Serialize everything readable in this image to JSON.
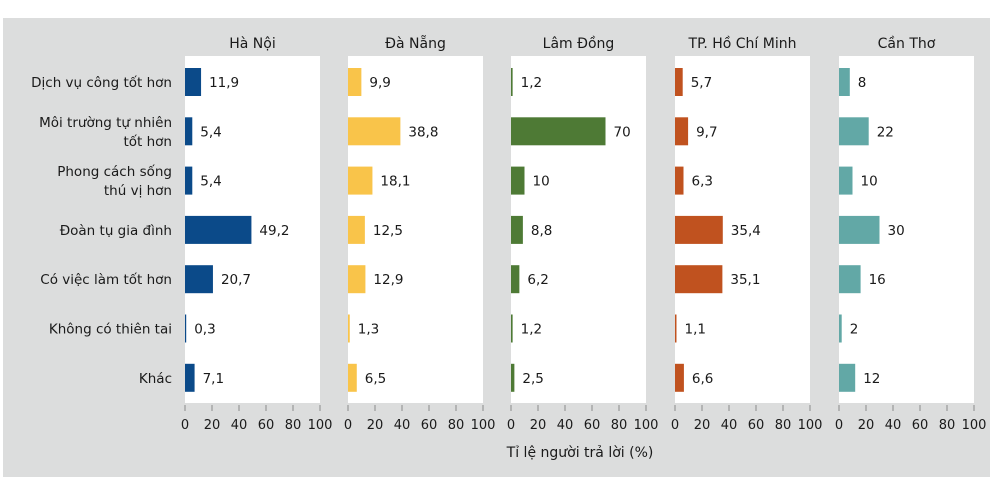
{
  "chart_data": {
    "type": "bar",
    "orientation": "horizontal",
    "title": "",
    "xlabel": "Tỉ lệ người trả lời (%)",
    "ylabel": "",
    "xlim": [
      0,
      100
    ],
    "xticks": [
      0,
      20,
      40,
      60,
      80,
      100
    ],
    "grid": false,
    "categories": [
      [
        "Dịch vụ công tốt hơn"
      ],
      [
        "Môi trường tự nhiên",
        "tốt hơn"
      ],
      [
        "Phong cách sống",
        "thú vị hơn"
      ],
      [
        "Đoàn tụ gia đình"
      ],
      [
        "Có việc làm tốt hơn"
      ],
      [
        "Không có thiên tai"
      ],
      [
        "Khác"
      ]
    ],
    "series": [
      {
        "name": "Hà Nội",
        "color": "#0b4a89",
        "values": [
          11.9,
          5.4,
          5.4,
          49.2,
          20.7,
          0.3,
          7.1
        ],
        "labels": [
          "11,9",
          "5,4",
          "5,4",
          "49,2",
          "20,7",
          "0,3",
          "7,1"
        ]
      },
      {
        "name": "Đà Nẵng",
        "color": "#f9c44a",
        "values": [
          9.9,
          38.8,
          18.1,
          12.5,
          12.9,
          1.3,
          6.5
        ],
        "labels": [
          "9,9",
          "38,8",
          "18,1",
          "12,5",
          "12,9",
          "1,3",
          "6,5"
        ]
      },
      {
        "name": "Lâm Đồng",
        "color": "#4e7a35",
        "values": [
          1.2,
          70,
          10,
          8.8,
          6.2,
          1.2,
          2.5
        ],
        "labels": [
          "1,2",
          "70",
          "10",
          "8,8",
          "6,2",
          "1,2",
          "2,5"
        ]
      },
      {
        "name": "TP. Hồ Chí Minh",
        "color": "#c0521f",
        "values": [
          5.7,
          9.7,
          6.3,
          35.4,
          35.1,
          1.1,
          6.6
        ],
        "labels": [
          "5,7",
          "9,7",
          "6,3",
          "35,4",
          "35,1",
          "1,1",
          "6,6"
        ]
      },
      {
        "name": "Cần Thơ",
        "color": "#62a8a6",
        "values": [
          8,
          22,
          10,
          30,
          16,
          2,
          12
        ],
        "labels": [
          "8",
          "22",
          "10",
          "30",
          "16",
          "2",
          "12"
        ]
      }
    ]
  },
  "colors": {
    "background": "#dcdddd",
    "plot_background": "#ffffff"
  }
}
